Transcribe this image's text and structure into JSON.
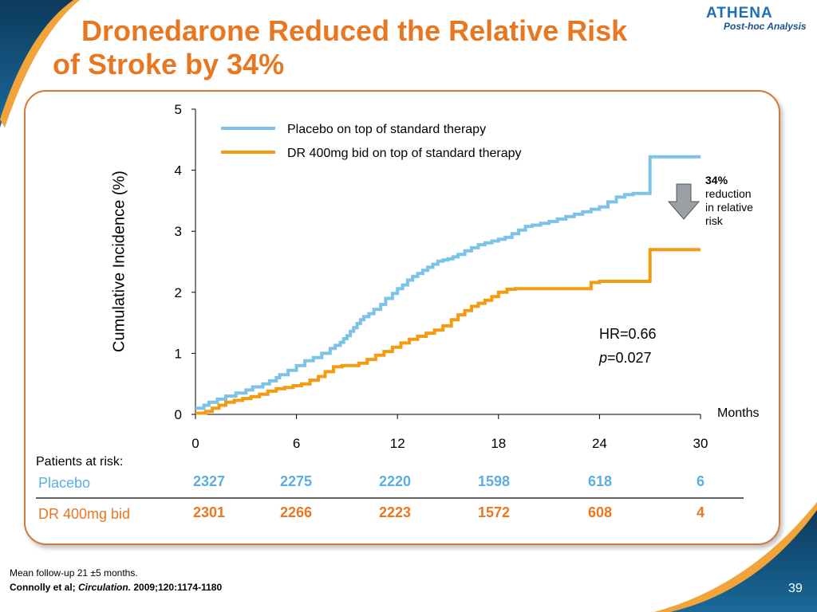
{
  "title": {
    "line1": "Dronedarone Reduced the Relative Risk",
    "line2": "of Stroke by 34%"
  },
  "logo": {
    "name": "ATHENA",
    "subtitle": "Post-hoc Analysis"
  },
  "colors": {
    "accent": "#e87722",
    "placebo": "#7dc3e8",
    "dr": "#f39c12",
    "brand": "#1f6fb0"
  },
  "chart_data": {
    "type": "line",
    "title": "",
    "xlabel": "Months",
    "ylabel": "Cumulative Incidence (%)",
    "xlim": [
      0,
      30
    ],
    "ylim": [
      0,
      5
    ],
    "xticks": [
      "0",
      "6",
      "12",
      "18",
      "24",
      "30"
    ],
    "yticks": [
      "0",
      "1",
      "2",
      "3",
      "4",
      "5"
    ],
    "legend_position": "top",
    "series": [
      {
        "name": "Placebo on top of standard therapy",
        "color": "#7dc3e8",
        "x": [
          0,
          0.5,
          0.8,
          1.3,
          1.8,
          2.4,
          3.0,
          3.4,
          4.0,
          4.4,
          4.8,
          5.0,
          5.5,
          6.0,
          6.5,
          7.0,
          7.5,
          8.0,
          8.3,
          8.6,
          8.8,
          9.0,
          9.2,
          9.4,
          9.6,
          9.8,
          10.0,
          10.3,
          10.6,
          11.0,
          11.3,
          11.7,
          12.0,
          12.3,
          12.6,
          12.9,
          13.2,
          13.5,
          13.8,
          14.1,
          14.4,
          14.7,
          15.0,
          15.3,
          15.6,
          16.0,
          16.4,
          16.8,
          17.2,
          17.6,
          18.0,
          18.4,
          18.8,
          19.2,
          19.6,
          20.0,
          20.5,
          21.0,
          21.5,
          22.0,
          22.5,
          23.0,
          23.5,
          24.0,
          24.5,
          25.0,
          25.5,
          26.0,
          26.5,
          27.0,
          27.5,
          28.0,
          28.5,
          29.0,
          29.5,
          30.0
        ],
        "y": [
          0.1,
          0.15,
          0.2,
          0.25,
          0.3,
          0.35,
          0.4,
          0.45,
          0.5,
          0.55,
          0.6,
          0.65,
          0.72,
          0.8,
          0.88,
          0.93,
          1.0,
          1.08,
          1.13,
          1.18,
          1.24,
          1.29,
          1.36,
          1.42,
          1.49,
          1.55,
          1.6,
          1.65,
          1.72,
          1.8,
          1.9,
          1.98,
          2.06,
          2.12,
          2.2,
          2.26,
          2.31,
          2.36,
          2.41,
          2.46,
          2.51,
          2.53,
          2.55,
          2.58,
          2.62,
          2.68,
          2.73,
          2.78,
          2.81,
          2.84,
          2.87,
          2.9,
          2.96,
          3.02,
          3.08,
          3.1,
          3.13,
          3.16,
          3.2,
          3.24,
          3.28,
          3.32,
          3.36,
          3.4,
          3.48,
          3.56,
          3.6,
          3.62,
          3.62,
          4.22,
          4.22,
          4.22,
          4.22,
          4.22,
          4.22,
          4.22
        ]
      },
      {
        "name": "DR 400mg bid on top of standard therapy",
        "color": "#f39c12",
        "x": [
          0,
          0.6,
          1.0,
          1.4,
          1.8,
          2.3,
          2.8,
          3.3,
          3.8,
          4.3,
          4.8,
          5.3,
          5.8,
          6.3,
          6.8,
          7.3,
          7.7,
          8.2,
          8.7,
          9.2,
          9.7,
          10.2,
          10.7,
          11.2,
          11.7,
          12.2,
          12.7,
          13.2,
          13.7,
          14.2,
          14.7,
          15.2,
          15.6,
          16.0,
          16.4,
          16.8,
          17.2,
          17.6,
          18.0,
          18.5,
          19.0,
          19.5,
          20.0,
          20.5,
          21.0,
          21.5,
          22.0,
          22.5,
          23.0,
          23.5,
          24.0,
          24.5,
          25.0,
          25.5,
          26.0,
          26.5,
          27.0,
          27.5,
          28.0,
          28.5,
          29.0,
          29.5,
          30.0
        ],
        "y": [
          0.02,
          0.05,
          0.1,
          0.15,
          0.2,
          0.23,
          0.26,
          0.29,
          0.33,
          0.38,
          0.42,
          0.44,
          0.47,
          0.5,
          0.56,
          0.62,
          0.7,
          0.78,
          0.8,
          0.8,
          0.84,
          0.9,
          0.97,
          1.03,
          1.1,
          1.17,
          1.23,
          1.28,
          1.33,
          1.38,
          1.45,
          1.55,
          1.63,
          1.7,
          1.77,
          1.82,
          1.87,
          1.93,
          2.0,
          2.05,
          2.06,
          2.06,
          2.06,
          2.06,
          2.06,
          2.06,
          2.06,
          2.06,
          2.06,
          2.16,
          2.18,
          2.18,
          2.18,
          2.18,
          2.18,
          2.18,
          2.7,
          2.7,
          2.7,
          2.7,
          2.7,
          2.7,
          2.7
        ]
      }
    ]
  },
  "annotation": {
    "pct": "34%",
    "text1": "reduction",
    "text2": "in relative",
    "text3": "risk"
  },
  "hr": {
    "label": "HR=0.66",
    "p_italic": "p",
    "p_rest": "=0.027"
  },
  "risk_table": {
    "heading": "Patients at risk:",
    "rows": [
      {
        "label": "Placebo",
        "values": [
          "2327",
          "2275",
          "2220",
          "1598",
          "618",
          "6"
        ],
        "label_color": "#5aafe0",
        "value_color": "#5aafe0"
      },
      {
        "label": "DR 400mg bid",
        "values": [
          "2301",
          "2266",
          "2223",
          "1572",
          "608",
          "4"
        ],
        "label_color": "#e87722",
        "value_color": "#e87722"
      }
    ]
  },
  "footer": {
    "note": "Mean follow-up 21 ±5 months.",
    "ref_authors": "Connolly et al; ",
    "ref_journal": "Circulation.",
    "ref_rest": " 2009;120:1174-1180",
    "page": "39"
  }
}
